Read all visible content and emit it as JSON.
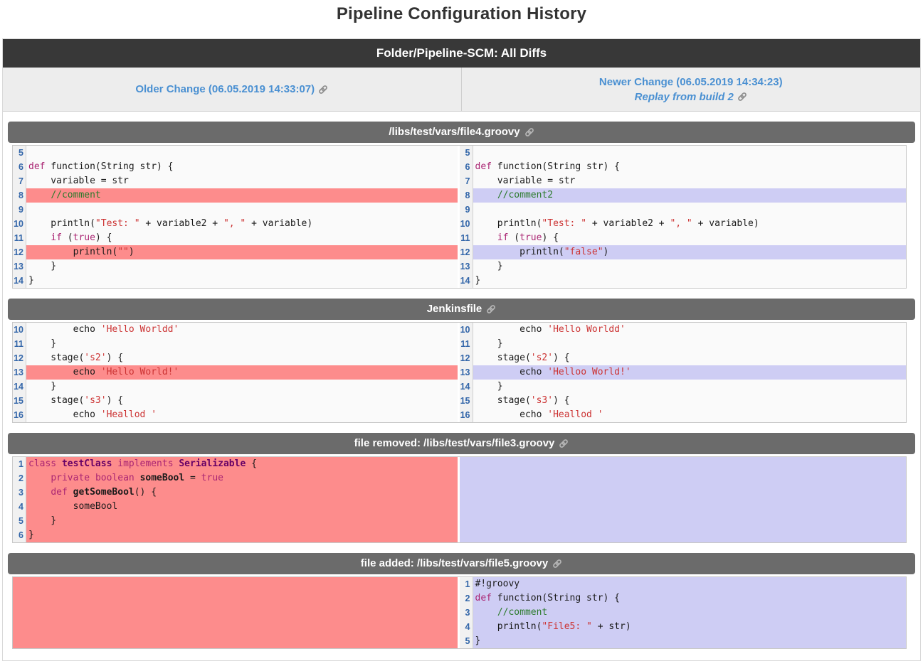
{
  "page_title": "Pipeline Configuration History",
  "top_bar": {
    "title": "Folder/Pipeline-SCM: All Diffs"
  },
  "nav": {
    "older": {
      "label": "Older Change (06.05.2019 14:33:07)",
      "icon": "link-icon"
    },
    "newer": {
      "label": "Newer Change (06.05.2019 14:34:23)"
    },
    "replay": {
      "label": "Replay from build 2",
      "icon": "link-icon"
    }
  },
  "colors": {
    "top_bar_bg": "#383838",
    "section_header_bg": "#6b6b6b",
    "removed_bg": "#fd8c8c",
    "added_bg": "#cecdf4",
    "link_blue": "#4a90d2",
    "line_number_blue": "#3366a9",
    "keyword": "#aa2573",
    "string": "#cc3333",
    "comment": "#2b7a2b"
  },
  "sections": [
    {
      "title": "/libs/test/vars/file4.groovy",
      "icon": "link-icon",
      "rows": [
        {
          "ln": "5",
          "rn": "5",
          "lh": "",
          "rh": "",
          "l": [],
          "r": []
        },
        {
          "ln": "6",
          "rn": "6",
          "lh": "",
          "rh": "",
          "l": [
            [
              "k",
              "def"
            ],
            [
              "p",
              " function(String str) {"
            ]
          ],
          "r": [
            [
              "k",
              "def"
            ],
            [
              "p",
              " function(String str) {"
            ]
          ]
        },
        {
          "ln": "7",
          "rn": "7",
          "lh": "",
          "rh": "",
          "l": [
            [
              "p",
              "    variable = str"
            ]
          ],
          "r": [
            [
              "p",
              "    variable = str"
            ]
          ]
        },
        {
          "ln": "8",
          "rn": "8",
          "lh": "rem",
          "rh": "add",
          "l": [
            [
              "p",
              "    "
            ],
            [
              "c",
              "//comment"
            ]
          ],
          "r": [
            [
              "p",
              "    "
            ],
            [
              "c",
              "//comment2"
            ]
          ]
        },
        {
          "ln": "9",
          "rn": "9",
          "lh": "",
          "rh": "",
          "l": [],
          "r": []
        },
        {
          "ln": "10",
          "rn": "10",
          "lh": "",
          "rh": "",
          "l": [
            [
              "p",
              "    println("
            ],
            [
              "s",
              "\"Test: \""
            ],
            [
              "p",
              " + variable2 + "
            ],
            [
              "s",
              "\", \""
            ],
            [
              "p",
              " + variable)"
            ]
          ],
          "r": [
            [
              "p",
              "    println("
            ],
            [
              "s",
              "\"Test: \""
            ],
            [
              "p",
              " + variable2 + "
            ],
            [
              "s",
              "\", \""
            ],
            [
              "p",
              " + variable)"
            ]
          ]
        },
        {
          "ln": "11",
          "rn": "11",
          "lh": "",
          "rh": "",
          "l": [
            [
              "p",
              "    "
            ],
            [
              "k",
              "if"
            ],
            [
              "p",
              " ("
            ],
            [
              "k",
              "true"
            ],
            [
              "p",
              ") {"
            ]
          ],
          "r": [
            [
              "p",
              "    "
            ],
            [
              "k",
              "if"
            ],
            [
              "p",
              " ("
            ],
            [
              "k",
              "true"
            ],
            [
              "p",
              ") {"
            ]
          ]
        },
        {
          "ln": "12",
          "rn": "12",
          "lh": "rem",
          "rh": "add",
          "l": [
            [
              "p",
              "        println("
            ],
            [
              "s",
              "\"\""
            ],
            [
              "p",
              ")"
            ]
          ],
          "r": [
            [
              "p",
              "        println("
            ],
            [
              "s",
              "\"false\""
            ],
            [
              "p",
              ")"
            ]
          ]
        },
        {
          "ln": "13",
          "rn": "13",
          "lh": "",
          "rh": "",
          "l": [
            [
              "p",
              "    }"
            ]
          ],
          "r": [
            [
              "p",
              "    }"
            ]
          ]
        },
        {
          "ln": "14",
          "rn": "14",
          "lh": "",
          "rh": "",
          "l": [
            [
              "p",
              "}"
            ]
          ],
          "r": [
            [
              "p",
              "}"
            ]
          ]
        }
      ]
    },
    {
      "title": "Jenkinsfile",
      "icon": "link-icon",
      "rows": [
        {
          "ln": "10",
          "rn": "10",
          "lh": "",
          "rh": "",
          "l": [
            [
              "p",
              "        echo "
            ],
            [
              "s",
              "'Hello Worldd'"
            ]
          ],
          "r": [
            [
              "p",
              "        echo "
            ],
            [
              "s",
              "'Hello Worldd'"
            ]
          ]
        },
        {
          "ln": "11",
          "rn": "11",
          "lh": "",
          "rh": "",
          "l": [
            [
              "p",
              "    }"
            ]
          ],
          "r": [
            [
              "p",
              "    }"
            ]
          ]
        },
        {
          "ln": "12",
          "rn": "12",
          "lh": "",
          "rh": "",
          "l": [
            [
              "p",
              "    stage("
            ],
            [
              "s",
              "'s2'"
            ],
            [
              "p",
              ") {"
            ]
          ],
          "r": [
            [
              "p",
              "    stage("
            ],
            [
              "s",
              "'s2'"
            ],
            [
              "p",
              ") {"
            ]
          ]
        },
        {
          "ln": "13",
          "rn": "13",
          "lh": "rem",
          "rh": "add",
          "l": [
            [
              "p",
              "        echo "
            ],
            [
              "s",
              "'Hello World!'"
            ]
          ],
          "r": [
            [
              "p",
              "        echo "
            ],
            [
              "s",
              "'Helloo World!'"
            ]
          ]
        },
        {
          "ln": "14",
          "rn": "14",
          "lh": "",
          "rh": "",
          "l": [
            [
              "p",
              "    }"
            ]
          ],
          "r": [
            [
              "p",
              "    }"
            ]
          ]
        },
        {
          "ln": "15",
          "rn": "15",
          "lh": "",
          "rh": "",
          "l": [
            [
              "p",
              "    stage("
            ],
            [
              "s",
              "'s3'"
            ],
            [
              "p",
              ") {"
            ]
          ],
          "r": [
            [
              "p",
              "    stage("
            ],
            [
              "s",
              "'s3'"
            ],
            [
              "p",
              ") {"
            ]
          ]
        },
        {
          "ln": "16",
          "rn": "16",
          "lh": "",
          "rh": "",
          "l": [
            [
              "p",
              "        echo "
            ],
            [
              "s",
              "'Heallod '"
            ]
          ],
          "r": [
            [
              "p",
              "        echo "
            ],
            [
              "s",
              "'Heallod '"
            ]
          ]
        }
      ]
    },
    {
      "title": "file removed: /libs/test/vars/file3.groovy",
      "icon": "link-icon",
      "rows": [
        {
          "ln": "1",
          "rn": "",
          "lh": "rem",
          "rh": "",
          "l": [
            [
              "k",
              "class"
            ],
            [
              "p",
              " "
            ],
            [
              "t",
              "testClass"
            ],
            [
              "p",
              " "
            ],
            [
              "k",
              "implements"
            ],
            [
              "p",
              " "
            ],
            [
              "t",
              "Serializable"
            ],
            [
              "p",
              " {"
            ]
          ],
          "r": null
        },
        {
          "ln": "2",
          "rn": "",
          "lh": "rem",
          "rh": "",
          "l": [
            [
              "p",
              "    "
            ],
            [
              "k",
              "private"
            ],
            [
              "p",
              " "
            ],
            [
              "k",
              "boolean"
            ],
            [
              "p",
              " "
            ],
            [
              "b",
              "someBool"
            ],
            [
              "p",
              " = "
            ],
            [
              "k",
              "true"
            ]
          ],
          "r": null
        },
        {
          "ln": "3",
          "rn": "",
          "lh": "rem",
          "rh": "",
          "l": [
            [
              "p",
              "    "
            ],
            [
              "k",
              "def"
            ],
            [
              "p",
              " "
            ],
            [
              "b",
              "getSomeBool"
            ],
            [
              "p",
              "() {"
            ]
          ],
          "r": null
        },
        {
          "ln": "4",
          "rn": "",
          "lh": "rem",
          "rh": "",
          "l": [
            [
              "p",
              "        someBool"
            ]
          ],
          "r": null
        },
        {
          "ln": "5",
          "rn": "",
          "lh": "rem",
          "rh": "",
          "l": [
            [
              "p",
              "    }"
            ]
          ],
          "r": null
        },
        {
          "ln": "6",
          "rn": "",
          "lh": "rem",
          "rh": "",
          "l": [
            [
              "p",
              "}"
            ]
          ],
          "r": null
        }
      ]
    },
    {
      "title": "file added: /libs/test/vars/file5.groovy",
      "icon": "link-icon",
      "rows": [
        {
          "ln": "",
          "rn": "1",
          "lh": "",
          "rh": "add",
          "l": null,
          "r": [
            [
              "p",
              "#!groovy"
            ]
          ]
        },
        {
          "ln": "",
          "rn": "2",
          "lh": "",
          "rh": "add",
          "l": null,
          "r": [
            [
              "k",
              "def"
            ],
            [
              "p",
              " function(String str) {"
            ]
          ]
        },
        {
          "ln": "",
          "rn": "3",
          "lh": "",
          "rh": "add",
          "l": null,
          "r": [
            [
              "p",
              "    "
            ],
            [
              "c",
              "//comment"
            ]
          ]
        },
        {
          "ln": "",
          "rn": "4",
          "lh": "",
          "rh": "add",
          "l": null,
          "r": [
            [
              "p",
              "    println("
            ],
            [
              "s",
              "\"File5: \""
            ],
            [
              "p",
              " + str)"
            ]
          ]
        },
        {
          "ln": "",
          "rn": "5",
          "lh": "",
          "rh": "add",
          "l": null,
          "r": [
            [
              "p",
              "}"
            ]
          ]
        }
      ]
    }
  ]
}
